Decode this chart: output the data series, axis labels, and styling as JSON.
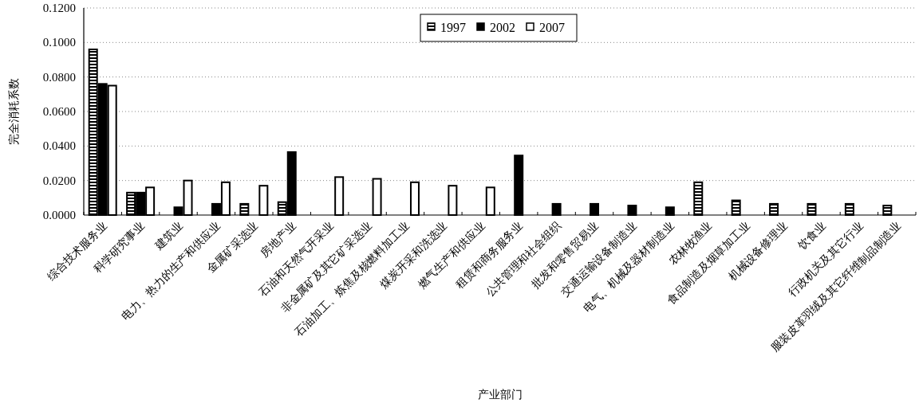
{
  "chart_data": {
    "type": "bar",
    "xlabel": "产业部门",
    "ylabel": "完全消耗系数",
    "categories": [
      "综合技术服务业",
      "科学研究事业",
      "建筑业",
      "电力、热力的生产和供应业",
      "金属矿采选业",
      "房地产业",
      "石油和天然气开采业",
      "非金属矿及其它矿采选业",
      "石油加工、炼焦及核燃料加工业",
      "煤炭开采和洗选业",
      "燃气生产和供应业",
      "租赁和商务服务业",
      "公共管理和社会组织",
      "批发和零售贸易业",
      "交通运输设备制造业",
      "电气、机械及器材制造业",
      "农林牧渔业",
      "食品制造及烟草加工业",
      "机械设备修理业",
      "饮食业",
      "行政机关及其它行业",
      "服装皮革羽绒及其它纤维制品制造业"
    ],
    "series": [
      {
        "name": "1997",
        "color": "#000000",
        "values": [
          0.096,
          0.013,
          null,
          null,
          0.0065,
          0.0075,
          null,
          null,
          null,
          null,
          null,
          null,
          null,
          null,
          null,
          null,
          0.019,
          0.0085,
          0.0065,
          0.0065,
          0.0065,
          0.0055
        ]
      },
      {
        "name": "2002",
        "color": "#000000",
        "values": [
          0.076,
          0.013,
          0.0045,
          0.0065,
          null,
          0.0365,
          null,
          null,
          null,
          null,
          null,
          0.0345,
          0.0065,
          0.0065,
          0.0055,
          0.0045,
          null,
          null,
          null,
          null,
          null,
          null
        ]
      },
      {
        "name": "2007",
        "color": "#ffffff",
        "values": [
          0.075,
          0.016,
          0.02,
          0.019,
          0.017,
          null,
          0.022,
          0.021,
          0.019,
          0.017,
          0.016,
          null,
          null,
          null,
          null,
          null,
          null,
          null,
          null,
          null,
          null,
          null
        ]
      }
    ],
    "ylim": [
      0,
      0.12
    ],
    "yticks": [
      {
        "value": 0,
        "label": "0.0000"
      },
      {
        "value": 0.02,
        "label": "0.0200"
      },
      {
        "value": 0.04,
        "label": "0.0400"
      },
      {
        "value": 0.06,
        "label": "0.0600"
      },
      {
        "value": 0.08,
        "label": "0.0800"
      },
      {
        "value": 0.1,
        "label": "0.1000"
      },
      {
        "value": 0.12,
        "label": "0.1200"
      }
    ],
    "grid": "y",
    "legend": "top"
  }
}
